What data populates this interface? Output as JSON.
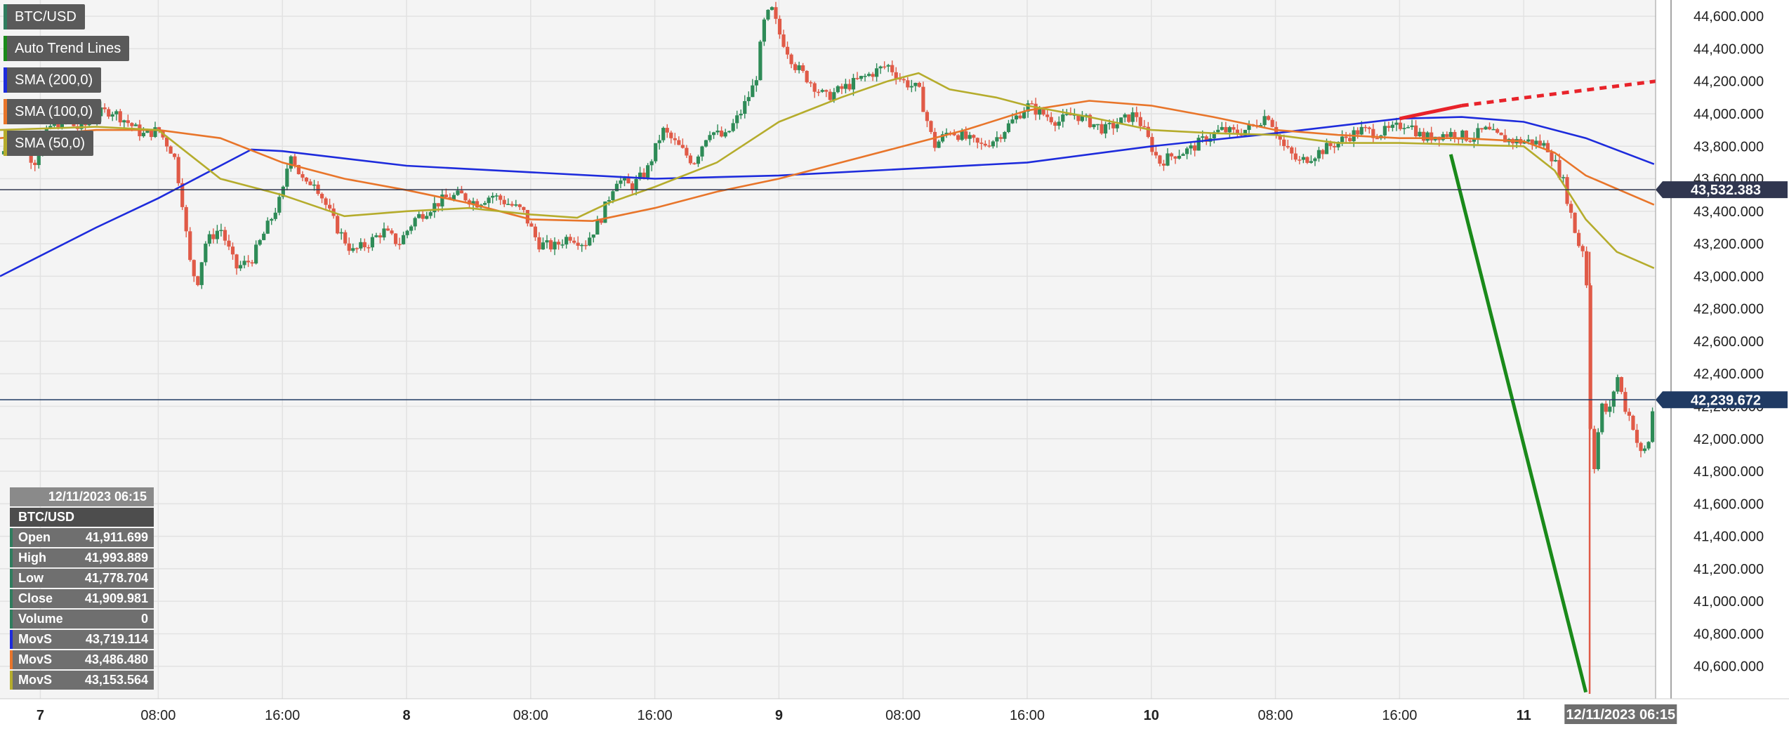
{
  "legend": {
    "items": [
      {
        "label": "BTC/USD",
        "color": "#2f7d5e"
      },
      {
        "label": "Auto Trend Lines",
        "color": "#1a8a1a"
      },
      {
        "label": "SMA (200,0)",
        "color": "#1d2bdc"
      },
      {
        "label": "SMA (100,0)",
        "color": "#e8752a"
      },
      {
        "label": "SMA (50,0)",
        "color": "#b5ac2c"
      }
    ]
  },
  "info": {
    "date": "12/11/2023 06:15",
    "symbol": "BTC/USD",
    "rows": [
      {
        "label": "Open",
        "value": "41,911.699",
        "color": "#2f7d5e"
      },
      {
        "label": "High",
        "value": "41,993.889",
        "color": "#2f7d5e"
      },
      {
        "label": "Low",
        "value": "41,778.704",
        "color": "#2f7d5e"
      },
      {
        "label": "Close",
        "value": "41,909.981",
        "color": "#2f7d5e"
      },
      {
        "label": "Volume",
        "value": "0",
        "color": "#2f7d5e"
      },
      {
        "label": "MovS",
        "value": "43,719.114",
        "color": "#1d2bdc"
      },
      {
        "label": "MovS",
        "value": "43,486.480",
        "color": "#e8752a"
      },
      {
        "label": "MovS",
        "value": "43,153.564",
        "color": "#b5ac2c"
      }
    ]
  },
  "chart_data": {
    "type": "candlestick",
    "xlabel": "",
    "ylabel": "",
    "ylim": [
      40400,
      44700
    ],
    "grid": true,
    "y_ticks": [
      "44,600.000",
      "44,400.000",
      "44,200.000",
      "44,000.000",
      "43,800.000",
      "43,600.000",
      "43,400.000",
      "43,200.000",
      "43,000.000",
      "42,800.000",
      "42,600.000",
      "42,400.000",
      "42,200.000",
      "42,000.000",
      "41,800.000",
      "41,600.000",
      "41,400.000",
      "41,200.000",
      "41,000.000",
      "40,800.000",
      "40,600.000"
    ],
    "x_ticks": [
      {
        "label": "7",
        "t": 0.4
      },
      {
        "label": "08:00",
        "t": 8
      },
      {
        "label": "16:00",
        "t": 16
      },
      {
        "label": "8",
        "t": 24
      },
      {
        "label": "08:00",
        "t": 32
      },
      {
        "label": "16:00",
        "t": 40
      },
      {
        "label": "9",
        "t": 48
      },
      {
        "label": "08:00",
        "t": 56
      },
      {
        "label": "16:00",
        "t": 64
      },
      {
        "label": "10",
        "t": 72
      },
      {
        "label": "08:00",
        "t": 80
      },
      {
        "label": "16:00",
        "t": 88
      },
      {
        "label": "11",
        "t": 96
      },
      {
        "label": "12/11/2023 06:15",
        "t": 102.25
      }
    ],
    "xlim": [
      -2.2,
      104.5
    ],
    "price_series": [
      [
        -2.2,
        43750
      ],
      [
        -1,
        43850
      ],
      [
        0,
        43700
      ],
      [
        1,
        43920
      ],
      [
        2,
        43960
      ],
      [
        3,
        43900
      ],
      [
        4,
        44000
      ],
      [
        5,
        44020
      ],
      [
        6,
        43950
      ],
      [
        7,
        43870
      ],
      [
        8,
        43900
      ],
      [
        9,
        43750
      ],
      [
        9.5,
        43500
      ],
      [
        10,
        43100
      ],
      [
        10.5,
        42950
      ],
      [
        11,
        43200
      ],
      [
        12,
        43300
      ],
      [
        13,
        43050
      ],
      [
        14,
        43100
      ],
      [
        15,
        43300
      ],
      [
        16,
        43500
      ],
      [
        16.5,
        43780
      ],
      [
        17,
        43650
      ],
      [
        17.5,
        43550
      ],
      [
        18,
        43600
      ],
      [
        19,
        43400
      ],
      [
        19.5,
        43300
      ],
      [
        20.5,
        43150
      ],
      [
        21.5,
        43200
      ],
      [
        22.5,
        43280
      ],
      [
        23.5,
        43200
      ],
      [
        24.5,
        43350
      ],
      [
        25.5,
        43420
      ],
      [
        26.5,
        43480
      ],
      [
        27.5,
        43500
      ],
      [
        28.5,
        43450
      ],
      [
        29.5,
        43500
      ],
      [
        30.5,
        43450
      ],
      [
        31.5,
        43400
      ],
      [
        32.5,
        43200
      ],
      [
        33.5,
        43180
      ],
      [
        34.5,
        43250
      ],
      [
        35.5,
        43200
      ],
      [
        36.5,
        43350
      ],
      [
        37.5,
        43600
      ],
      [
        38.5,
        43550
      ],
      [
        39.5,
        43650
      ],
      [
        40.5,
        43900
      ],
      [
        41.5,
        43800
      ],
      [
        42.5,
        43700
      ],
      [
        43.5,
        43900
      ],
      [
        44.5,
        43850
      ],
      [
        45.5,
        44000
      ],
      [
        46.5,
        44200
      ],
      [
        47,
        44550
      ],
      [
        47.5,
        44650
      ],
      [
        48,
        44500
      ],
      [
        48.5,
        44400
      ],
      [
        49,
        44300
      ],
      [
        50,
        44200
      ],
      [
        51,
        44100
      ],
      [
        52,
        44150
      ],
      [
        53,
        44200
      ],
      [
        54,
        44250
      ],
      [
        55,
        44300
      ],
      [
        56,
        44200
      ],
      [
        57,
        44150
      ],
      [
        58,
        43800
      ],
      [
        59,
        43900
      ],
      [
        60,
        43850
      ],
      [
        61,
        43800
      ],
      [
        62,
        43850
      ],
      [
        63,
        43950
      ],
      [
        64,
        44050
      ],
      [
        65,
        44000
      ],
      [
        66,
        43950
      ],
      [
        67,
        44000
      ],
      [
        68,
        43950
      ],
      [
        69,
        43900
      ],
      [
        70,
        43950
      ],
      [
        71,
        44000
      ],
      [
        72,
        43800
      ],
      [
        72.5,
        43700
      ],
      [
        73.5,
        43750
      ],
      [
        74.5,
        43780
      ],
      [
        75.5,
        43850
      ],
      [
        76.5,
        43900
      ],
      [
        77.5,
        43880
      ],
      [
        78.5,
        43920
      ],
      [
        79.5,
        44000
      ],
      [
        80.5,
        43800
      ],
      [
        81.5,
        43700
      ],
      [
        82.5,
        43750
      ],
      [
        83.5,
        43800
      ],
      [
        84.5,
        43850
      ],
      [
        85.5,
        43900
      ],
      [
        86.5,
        43880
      ],
      [
        87.5,
        43900
      ],
      [
        88.5,
        43950
      ],
      [
        89.5,
        43850
      ],
      [
        90.5,
        43870
      ],
      [
        91.5,
        43880
      ],
      [
        92.5,
        43850
      ],
      [
        93.5,
        43900
      ],
      [
        94.5,
        43850
      ],
      [
        95.5,
        43830
      ],
      [
        96.5,
        43830
      ],
      [
        97.5,
        43800
      ],
      [
        98,
        43700
      ],
      [
        98.5,
        43600
      ],
      [
        99,
        43400
      ],
      [
        99.5,
        43200
      ],
      [
        100,
        43150
      ],
      [
        100.25,
        42150
      ],
      [
        100.5,
        41800
      ],
      [
        100.75,
        42000
      ],
      [
        101,
        42200
      ],
      [
        101.5,
        42150
      ],
      [
        102,
        42400
      ],
      [
        102.5,
        42200
      ],
      [
        103,
        42100
      ],
      [
        103.5,
        41900
      ],
      [
        104,
        41950
      ],
      [
        104.4,
        42240
      ]
    ],
    "series": [
      {
        "name": "SMA (200,0)",
        "color": "#1d2bdc",
        "points": [
          [
            -2.2,
            43000
          ],
          [
            4,
            43300
          ],
          [
            8,
            43480
          ],
          [
            12,
            43680
          ],
          [
            14,
            43780
          ],
          [
            16,
            43770
          ],
          [
            24,
            43680
          ],
          [
            32,
            43640
          ],
          [
            40,
            43600
          ],
          [
            48,
            43620
          ],
          [
            56,
            43660
          ],
          [
            64,
            43700
          ],
          [
            72,
            43800
          ],
          [
            80,
            43880
          ],
          [
            88,
            43970
          ],
          [
            92,
            43980
          ],
          [
            96,
            43950
          ],
          [
            100,
            43850
          ],
          [
            104.4,
            43690
          ]
        ]
      },
      {
        "name": "SMA (100,0)",
        "color": "#e8752a",
        "points": [
          [
            -2.2,
            43850
          ],
          [
            4,
            43900
          ],
          [
            8,
            43900
          ],
          [
            12,
            43850
          ],
          [
            16,
            43700
          ],
          [
            20,
            43600
          ],
          [
            24,
            43530
          ],
          [
            28,
            43450
          ],
          [
            32,
            43350
          ],
          [
            36,
            43340
          ],
          [
            40,
            43420
          ],
          [
            44,
            43520
          ],
          [
            48,
            43600
          ],
          [
            52,
            43700
          ],
          [
            56,
            43800
          ],
          [
            60,
            43900
          ],
          [
            64,
            44020
          ],
          [
            68,
            44080
          ],
          [
            72,
            44050
          ],
          [
            76,
            43980
          ],
          [
            80,
            43900
          ],
          [
            84,
            43870
          ],
          [
            88,
            43850
          ],
          [
            92,
            43850
          ],
          [
            96,
            43830
          ],
          [
            98,
            43760
          ],
          [
            100,
            43620
          ],
          [
            104.4,
            43440
          ]
        ]
      },
      {
        "name": "SMA (50,0)",
        "color": "#b5ac2c",
        "points": [
          [
            -2.2,
            43900
          ],
          [
            4,
            43920
          ],
          [
            8,
            43900
          ],
          [
            10,
            43750
          ],
          [
            12,
            43600
          ],
          [
            14,
            43550
          ],
          [
            16,
            43500
          ],
          [
            20,
            43370
          ],
          [
            24,
            43400
          ],
          [
            28,
            43420
          ],
          [
            32,
            43380
          ],
          [
            35,
            43360
          ],
          [
            37,
            43450
          ],
          [
            40,
            43550
          ],
          [
            44,
            43700
          ],
          [
            48,
            43950
          ],
          [
            52,
            44100
          ],
          [
            55,
            44200
          ],
          [
            57,
            44250
          ],
          [
            59,
            44150
          ],
          [
            62,
            44100
          ],
          [
            64,
            44050
          ],
          [
            68,
            43980
          ],
          [
            72,
            43900
          ],
          [
            76,
            43880
          ],
          [
            80,
            43870
          ],
          [
            84,
            43820
          ],
          [
            88,
            43820
          ],
          [
            92,
            43810
          ],
          [
            96,
            43800
          ],
          [
            98,
            43650
          ],
          [
            100,
            43350
          ],
          [
            102,
            43150
          ],
          [
            104.4,
            43050
          ]
        ]
      }
    ],
    "trend_lines": [
      {
        "name": "red-resistance",
        "color": "#e8232a",
        "points": [
          [
            88,
            43970
          ],
          [
            92,
            44050
          ]
        ],
        "extension": [
          [
            92,
            44050
          ],
          [
            104.5,
            44200
          ]
        ]
      },
      {
        "name": "green-support",
        "color": "#1a8a1a",
        "points": [
          [
            91.3,
            43750
          ],
          [
            100,
            40440
          ]
        ]
      }
    ],
    "horizontal_lines": [
      {
        "value": 43532.383,
        "label": "43,532.383",
        "color": "#30364f"
      },
      {
        "value": 42239.672,
        "label": "42,239.672",
        "color": "#1f3a63"
      }
    ]
  }
}
